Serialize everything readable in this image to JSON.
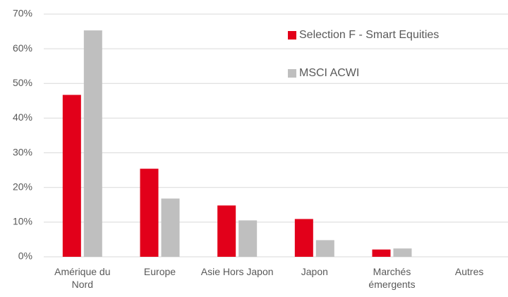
{
  "chart_data": {
    "type": "bar",
    "categories": [
      "Amérique du Nord",
      "Europe",
      "Asie Hors Japon",
      "Japon",
      "Marchés émergents",
      "Autres"
    ],
    "series": [
      {
        "name": "Selection F - Smart Equities",
        "color": "#e2001a",
        "values": [
          46.7,
          25.4,
          14.8,
          10.9,
          2.1,
          0
        ]
      },
      {
        "name": "MSCI ACWI",
        "color": "#bfbfbf",
        "values": [
          65.3,
          16.8,
          10.5,
          4.8,
          2.4,
          0
        ]
      }
    ],
    "ylim": [
      0,
      70
    ],
    "yticks": [
      {
        "value": 0,
        "label": "0%"
      },
      {
        "value": 10,
        "label": "10%"
      },
      {
        "value": 20,
        "label": "20%"
      },
      {
        "value": 30,
        "label": "30%"
      },
      {
        "value": 40,
        "label": "40%"
      },
      {
        "value": 50,
        "label": "50%"
      },
      {
        "value": 60,
        "label": "60%"
      },
      {
        "value": 70,
        "label": "70%"
      }
    ],
    "grid": true,
    "legend": "top-right"
  }
}
